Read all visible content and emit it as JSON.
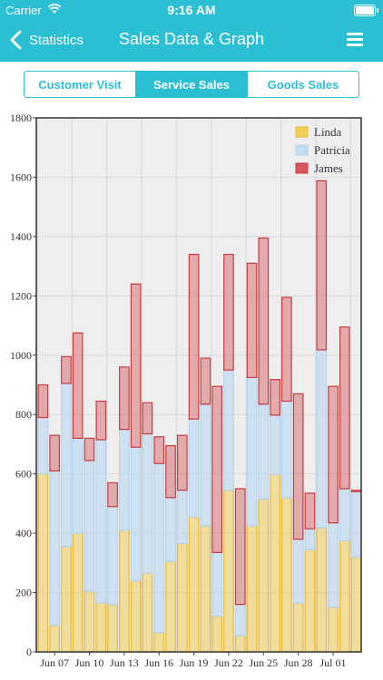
{
  "status_bar": {
    "carrier": "Carrier",
    "time": "9:16 AM"
  },
  "nav": {
    "back_label": "Statistics",
    "title": "Sales Data & Graph"
  },
  "tabs": [
    {
      "label": "Customer Visit",
      "active": false
    },
    {
      "label": "Service Sales",
      "active": true
    },
    {
      "label": "Goods Sales",
      "active": false
    }
  ],
  "colors": {
    "header": "#2bbfd4"
  },
  "chart_data": {
    "type": "bar",
    "stacked": true,
    "y_ticks": [
      "0",
      "200",
      "400",
      "600",
      "800",
      "1000",
      "1200",
      "1400",
      "1600",
      "1800"
    ],
    "ylim": [
      0,
      1800
    ],
    "x_tick_labels": [
      "Jun 07",
      "Jun 10",
      "Jun 13",
      "Jun 16",
      "Jun 19",
      "Jun 22",
      "Jun 25",
      "Jun 28",
      "Jul 01"
    ],
    "grid": true,
    "legend_position": "top-right",
    "series": [
      {
        "name": "Linda",
        "color": "#f2cf57",
        "values": [
          600,
          90,
          355,
          400,
          205,
          165,
          160,
          410,
          240,
          265,
          65,
          305,
          365,
          455,
          425,
          120,
          545,
          55,
          425,
          515,
          598,
          520,
          165,
          345,
          418,
          150,
          375,
          320
        ]
      },
      {
        "name": "Patricia",
        "color": "#c2dcf2",
        "values": [
          190,
          520,
          550,
          320,
          440,
          550,
          330,
          340,
          450,
          470,
          570,
          215,
          180,
          330,
          410,
          215,
          405,
          105,
          500,
          320,
          200,
          325,
          215,
          70,
          600,
          285,
          175,
          220
        ]
      },
      {
        "name": "James",
        "color": "#d5575b",
        "values": [
          110,
          120,
          90,
          355,
          75,
          130,
          80,
          210,
          550,
          105,
          90,
          175,
          185,
          555,
          155,
          560,
          390,
          390,
          385,
          560,
          120,
          350,
          490,
          120,
          570,
          460,
          545,
          5
        ]
      }
    ]
  }
}
